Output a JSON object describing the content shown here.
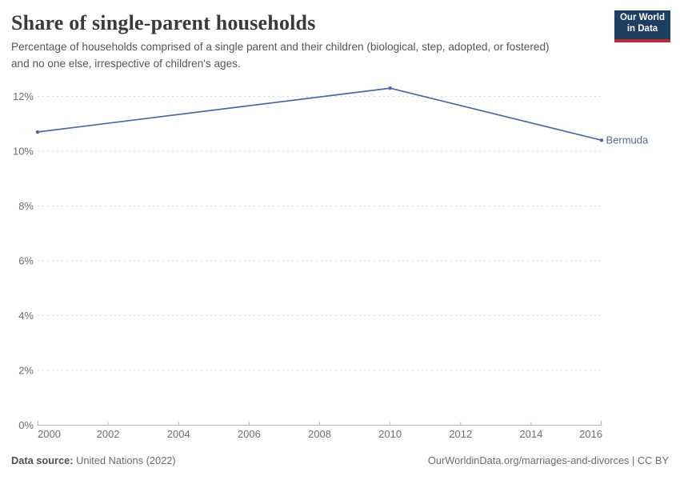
{
  "header": {
    "title": "Share of single-parent households",
    "subtitle": "Percentage of households comprised of a single parent and their children (biological, step, adopted, or fostered) and no one else, irrespective of children's ages.",
    "logo": {
      "line1": "Our World",
      "line2": "in Data"
    }
  },
  "chart_data": {
    "type": "line",
    "title": "Share of single-parent households",
    "xlabel": "",
    "ylabel": "",
    "xlim": [
      2000,
      2016
    ],
    "ylim": [
      0,
      12
    ],
    "x_ticks": [
      2000,
      2002,
      2004,
      2006,
      2008,
      2010,
      2012,
      2014,
      2016
    ],
    "y_ticks": [
      0,
      2,
      4,
      6,
      8,
      10,
      12
    ],
    "y_tick_suffix": "%",
    "grid": "horizontal dashed",
    "legend_position": "end-of-line label",
    "series": [
      {
        "name": "Bermuda",
        "color": "#4c6a9c",
        "x": [
          2000,
          2010,
          2016
        ],
        "values": [
          10.7,
          12.3,
          10.4
        ]
      }
    ]
  },
  "footer": {
    "source_label": "Data source:",
    "source_value": "United Nations (2022)",
    "link": "OurWorldinData.org/marriages-and-divorces | CC BY"
  },
  "colors": {
    "line_blue": "#4c6a9c",
    "grid": "#dcdcdc",
    "axis": "#b3b3b3",
    "tick_label": "#6e6e6e",
    "logo_bg": "#1d3d63",
    "logo_accent": "#be282d",
    "title": "#3a3a3a",
    "subtitle": "#565656"
  }
}
